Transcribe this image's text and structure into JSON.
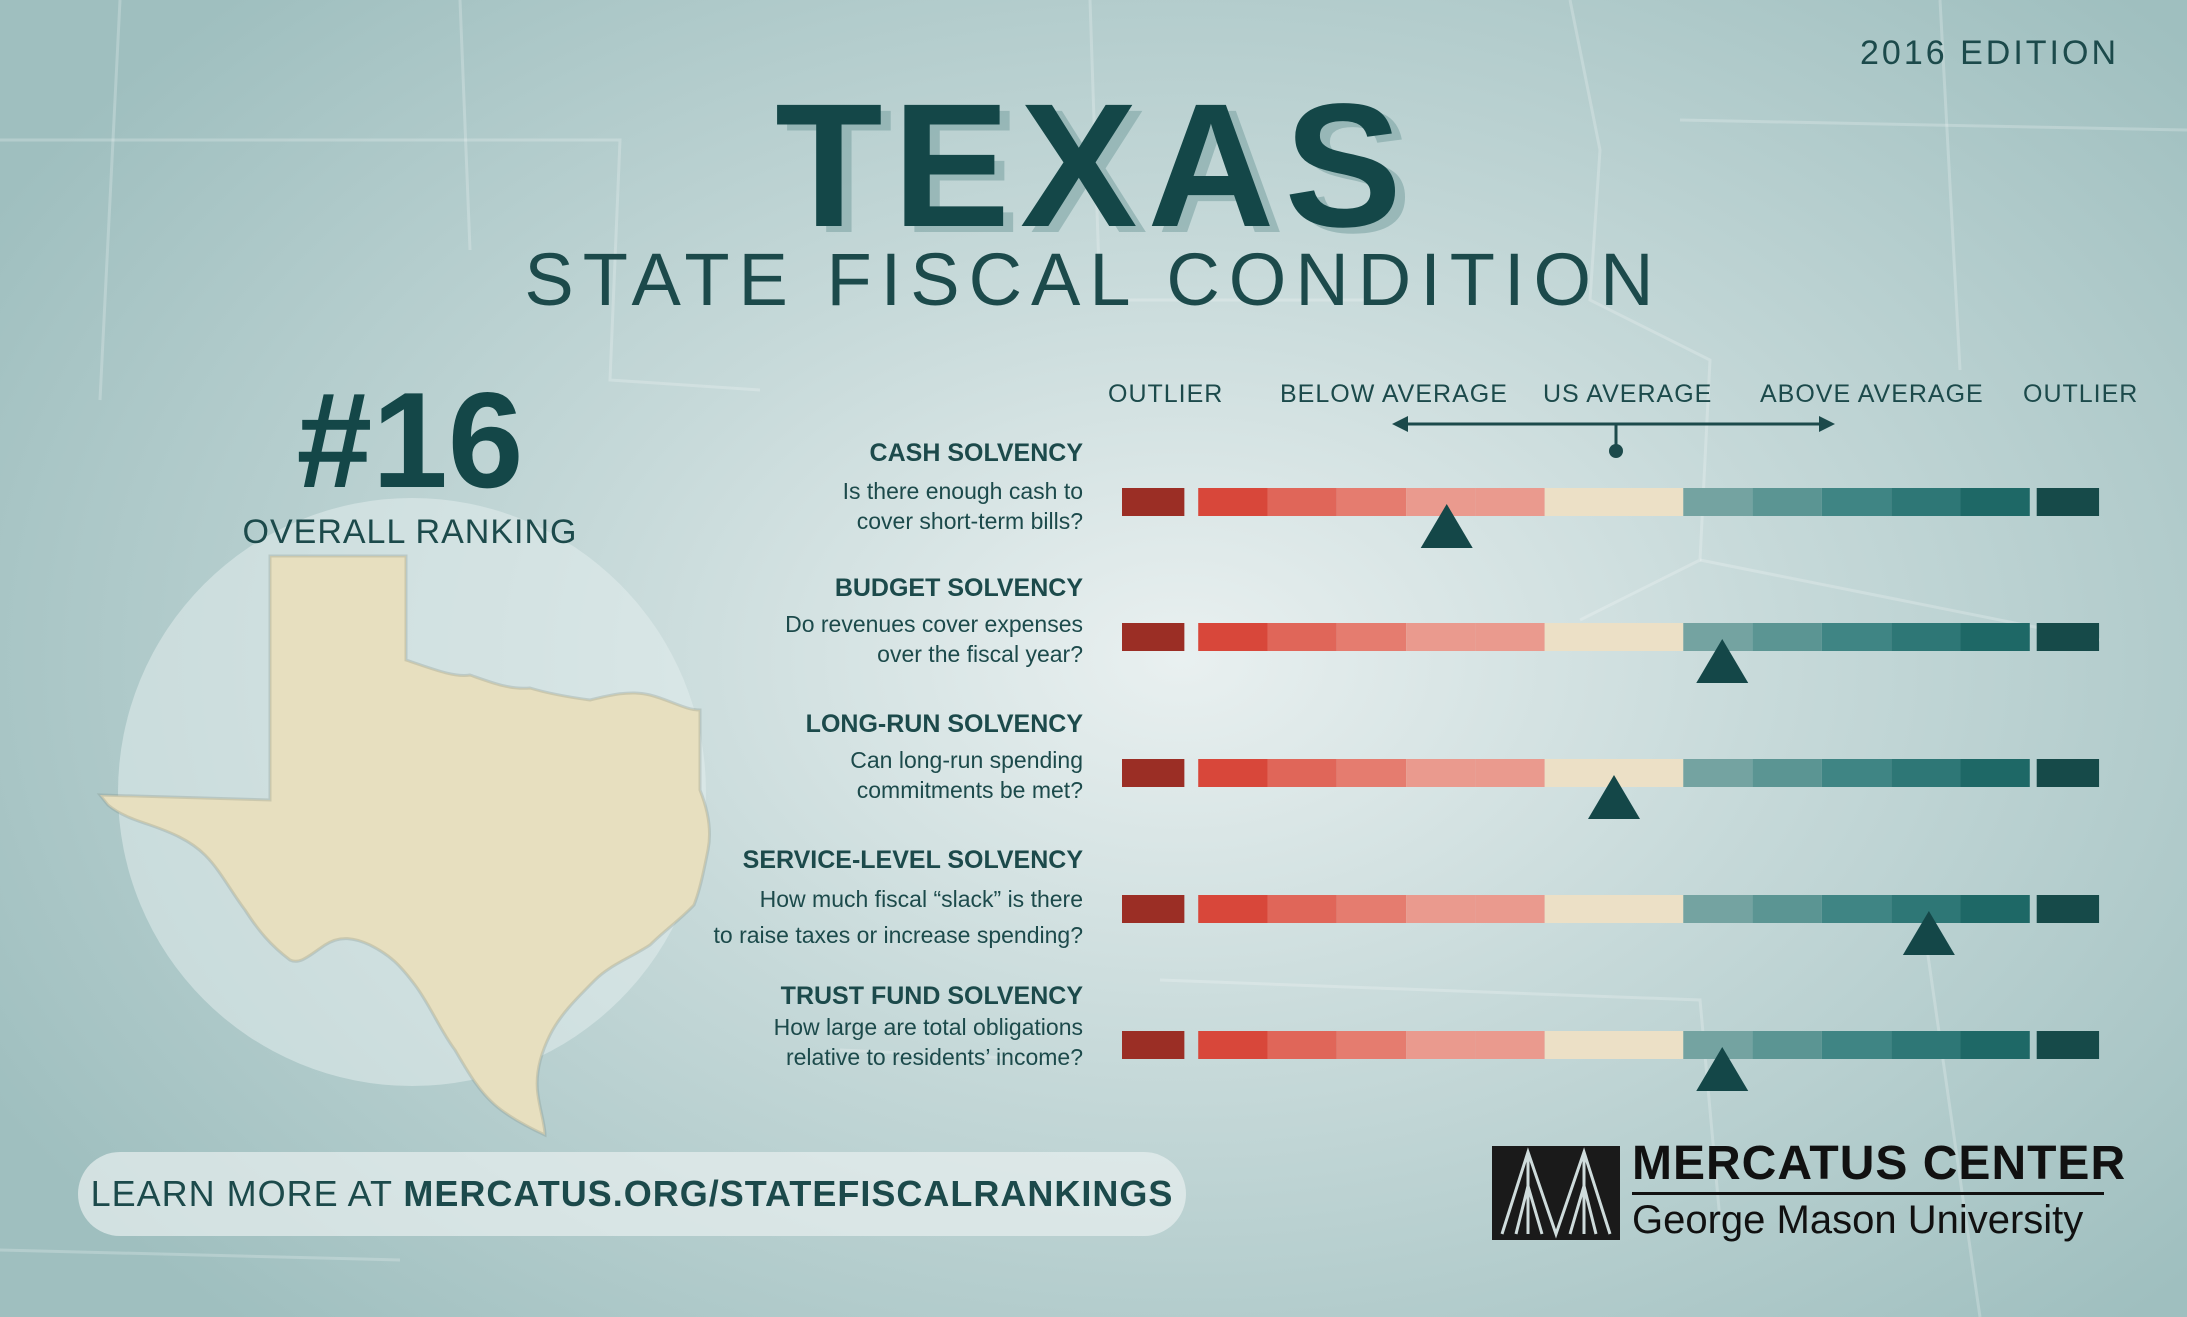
{
  "edition": "2016 EDITION",
  "state": "TEXAS",
  "subtitle": "STATE FISCAL CONDITION",
  "ranking": {
    "value": "#16",
    "label": "OVERALL RANKING"
  },
  "scale_labels": [
    "OUTLIER",
    "BELOW AVERAGE",
    "US AVERAGE",
    "ABOVE AVERAGE",
    "OUTLIER"
  ],
  "segment_colors": [
    "#9b2e25",
    "#d8473a",
    "#e06659",
    "#e57c6f",
    "#ea9a8e",
    "#ece0c6",
    "#74a3a1",
    "#5b9593",
    "#3f8584",
    "#2e7776",
    "#1e6866",
    "#164a49"
  ],
  "chart_data": {
    "type": "table",
    "categories": [
      "CASH SOLVENCY",
      "BUDGET SOLVENCY",
      "LONG-RUN SOLVENCY",
      "SERVICE-LEVEL SOLVENCY",
      "TRUST FUND SOLVENCY"
    ],
    "series": [
      {
        "values": [
          0.33,
          0.61,
          0.5,
          0.82,
          0.61
        ]
      }
    ],
    "ylim": [
      0,
      1
    ]
  },
  "rows": [
    {
      "title": "CASH SOLVENCY",
      "question": "Is there enough cash to\ncover short-term bills?",
      "marker": 0.33
    },
    {
      "title": "BUDGET SOLVENCY",
      "question": "Do revenues cover expenses\nover the fiscal year?",
      "marker": 0.61
    },
    {
      "title": "LONG-RUN SOLVENCY",
      "question": "Can long-run spending\ncommitments be met?",
      "marker": 0.5
    },
    {
      "title": "SERVICE-LEVEL SOLVENCY",
      "question": "How much fiscal “slack” is there\nto raise taxes or increase spending?",
      "marker": 0.82
    },
    {
      "title": "TRUST FUND SOLVENCY",
      "question": "How large are total obligations\nrelative to residents’ income?",
      "marker": 0.61
    }
  ],
  "footer": {
    "prefix": "LEARN MORE AT ",
    "url": "MERCATUS.ORG/STATEFISCALRANKINGS"
  },
  "logo": {
    "line1": "MERCATUS CENTER",
    "line2": "George Mason University"
  }
}
